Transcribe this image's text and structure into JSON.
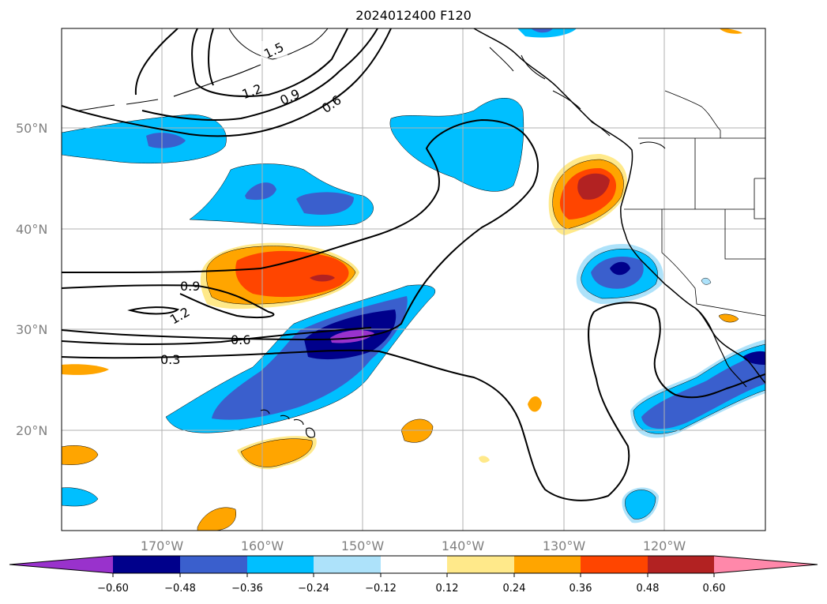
{
  "title": "2024012400 F120",
  "map": {
    "projection": "plate-carree",
    "lon_range": [
      -180,
      -110
    ],
    "lat_range": [
      10,
      60
    ],
    "lat_labels": [
      "50°N",
      "40°N",
      "30°N",
      "20°N"
    ],
    "lon_labels": [
      "170°W",
      "160°W",
      "150°W",
      "140°W",
      "130°W",
      "120°W"
    ],
    "contour_labels": [
      "1.5",
      "1.2",
      "0.9",
      "0.6",
      "0.9",
      "1.2",
      "0.6",
      "0.3"
    ]
  },
  "colorbar": {
    "tick_labels": [
      "−0.60",
      "−0.48",
      "−0.36",
      "−0.24",
      "−0.12",
      "0.12",
      "0.24",
      "0.36",
      "0.48",
      "0.60"
    ],
    "colors": [
      "#9932cc",
      "#00008b",
      "#3a5fcd",
      "#00bfff",
      "#ade2fa",
      "#ffffff",
      "#ffe98a",
      "#ffa500",
      "#ff4500",
      "#b22222",
      "#ff88aa"
    ]
  }
}
